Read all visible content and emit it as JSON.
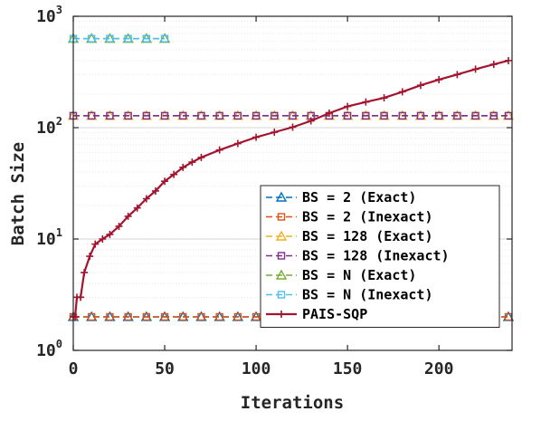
{
  "chart_data": {
    "type": "line",
    "xlabel": "Iterations",
    "ylabel": "Batch Size",
    "xlim": [
      0,
      240
    ],
    "ylim": [
      1,
      1000
    ],
    "yscale": "log",
    "grid": "y-log-dotted",
    "legend_position": "bottom-right",
    "x_ticks": [
      "0",
      "50",
      "100",
      "150",
      "200"
    ],
    "y_ticks": [
      {
        "base": "10",
        "exp": "0"
      },
      {
        "base": "10",
        "exp": "1"
      },
      {
        "base": "10",
        "exp": "2"
      },
      {
        "base": "10",
        "exp": "3"
      }
    ],
    "series": [
      {
        "name": "BS = 2 (Exact)",
        "color": "#0072BD",
        "marker": "triangle",
        "dash": "dashed",
        "x": [
          0,
          10,
          20,
          30,
          40,
          50,
          60,
          70,
          80,
          90,
          100,
          110,
          120,
          130,
          140,
          150,
          160,
          170,
          180,
          190,
          200,
          210,
          220,
          230,
          238
        ],
        "y": [
          2,
          2,
          2,
          2,
          2,
          2,
          2,
          2,
          2,
          2,
          2,
          2,
          2,
          2,
          2,
          2,
          2,
          2,
          2,
          2,
          2,
          2,
          2,
          2,
          2
        ]
      },
      {
        "name": "BS = 2 (Inexact)",
        "color": "#D95319",
        "marker": "square",
        "dash": "dashed",
        "x": [
          0,
          10,
          20,
          30,
          40,
          50,
          60,
          70,
          80,
          90,
          100,
          110,
          120,
          130,
          140,
          150,
          160,
          170,
          180,
          190,
          200,
          210,
          220,
          230,
          238
        ],
        "y": [
          2,
          2,
          2,
          2,
          2,
          2,
          2,
          2,
          2,
          2,
          2,
          2,
          2,
          2,
          2,
          2,
          2,
          2,
          2,
          2,
          2,
          2,
          2,
          2,
          2
        ]
      },
      {
        "name": "BS = 128 (Exact)",
        "color": "#EDB120",
        "marker": "triangle",
        "dash": "dashed",
        "x": [
          0,
          10,
          20,
          30,
          40,
          50,
          60,
          70,
          80,
          90,
          100,
          110,
          120,
          130,
          140,
          150,
          160,
          170,
          180,
          190,
          200,
          210,
          220,
          230,
          238
        ],
        "y": [
          128,
          128,
          128,
          128,
          128,
          128,
          128,
          128,
          128,
          128,
          128,
          128,
          128,
          128,
          128,
          128,
          128,
          128,
          128,
          128,
          128,
          128,
          128,
          128,
          128
        ]
      },
      {
        "name": "BS = 128 (Inexact)",
        "color": "#7E2F8E",
        "marker": "square",
        "dash": "dashed",
        "x": [
          0,
          10,
          20,
          30,
          40,
          50,
          60,
          70,
          80,
          90,
          100,
          110,
          120,
          130,
          140,
          150,
          160,
          170,
          180,
          190,
          200,
          210,
          220,
          230,
          238
        ],
        "y": [
          128,
          128,
          128,
          128,
          128,
          128,
          128,
          128,
          128,
          128,
          128,
          128,
          128,
          128,
          128,
          128,
          128,
          128,
          128,
          128,
          128,
          128,
          128,
          128,
          128
        ]
      },
      {
        "name": "BS = N (Exact)",
        "color": "#77AC30",
        "marker": "triangle",
        "dash": "dashed",
        "x": [
          0,
          10,
          20,
          30,
          40,
          50
        ],
        "y": [
          630,
          630,
          630,
          630,
          630,
          630
        ]
      },
      {
        "name": "BS = N (Inexact)",
        "color": "#4DBEEE",
        "marker": "square",
        "dash": "dashed",
        "x": [
          0,
          10,
          20,
          30,
          40,
          50
        ],
        "y": [
          630,
          630,
          630,
          630,
          630,
          630
        ]
      },
      {
        "name": "PAIS-SQP",
        "color": "#A2142F",
        "marker": "plus",
        "dash": "solid",
        "x": [
          0,
          1,
          2,
          4,
          6,
          9,
          12,
          16,
          20,
          25,
          30,
          35,
          40,
          45,
          50,
          55,
          60,
          65,
          70,
          80,
          90,
          100,
          110,
          120,
          130,
          140,
          150,
          160,
          170,
          180,
          190,
          200,
          210,
          220,
          230,
          238
        ],
        "y": [
          2,
          2,
          3,
          3,
          5,
          7,
          9,
          10,
          11,
          13,
          16,
          19,
          23,
          27,
          33,
          38,
          44,
          49,
          54,
          63,
          72,
          82,
          91,
          101,
          115,
          135,
          155,
          170,
          185,
          210,
          240,
          270,
          300,
          335,
          370,
          400
        ]
      }
    ]
  }
}
